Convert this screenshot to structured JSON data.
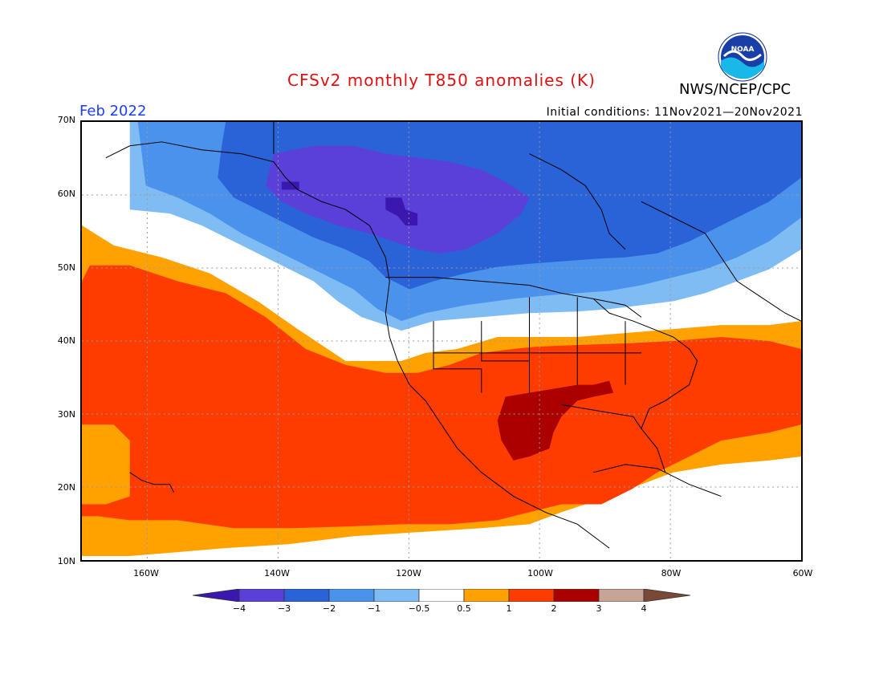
{
  "title": "CFSv2 monthly T850 anomalies (K)",
  "agency": "NWS/NCEP/CPC",
  "logo_text": "NOAA",
  "month": "Feb 2022",
  "initial_conditions": "Initial conditions: 11Nov2021—20Nov2021",
  "axes": {
    "lat_labels": [
      "70N",
      "60N",
      "50N",
      "40N",
      "30N",
      "20N",
      "10N"
    ],
    "lon_labels": [
      "160W",
      "140W",
      "120W",
      "100W",
      "80W",
      "60W"
    ],
    "lat_range": [
      10,
      70
    ],
    "lon_range": [
      -170,
      -60
    ]
  },
  "colorbar": {
    "labels": [
      "−4",
      "−3",
      "−2",
      "−1",
      "−0.5",
      "0.5",
      "1",
      "2",
      "3",
      "4"
    ],
    "colors": [
      "#3a18b0",
      "#5a40d8",
      "#2a62d8",
      "#4a92ec",
      "#80bcf4",
      "#ffffff",
      "#ffa200",
      "#ff3c00",
      "#aa0000",
      "#c8a494",
      "#7a4836"
    ]
  },
  "colors": {
    "strong_cold": "#4a2cc8",
    "very_cold": "#5a40d8",
    "cold": "#2a62d8",
    "cool": "#4a92ec",
    "slightly_cool": "#80bcf4",
    "neutral": "#ffffff",
    "slightly_warm": "#ffa200",
    "warm": "#ff3c00",
    "hot": "#aa0000"
  }
}
